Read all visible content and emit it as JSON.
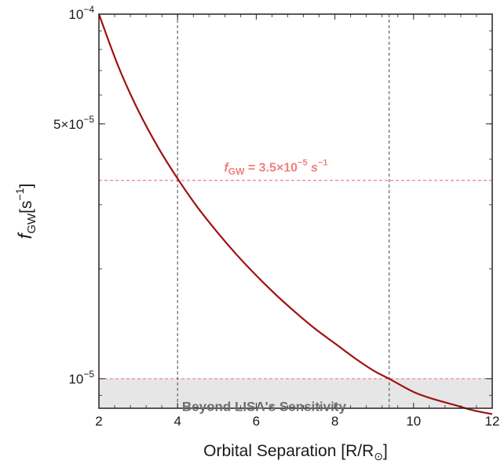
{
  "chart_data": {
    "type": "line",
    "xlabel": "Orbital Separation [R/R",
    "xlabel_sub": "⊙",
    "xlabel_close": "]",
    "ylabel_main": "f",
    "ylabel_sub": "GW",
    "ylabel_unit": "[s",
    "ylabel_exp": "−1",
    "ylabel_close": "]",
    "xlim": [
      2,
      12
    ],
    "ylim": [
      8.3e-06,
      0.0001
    ],
    "y_scale": "log",
    "x_ticks": [
      {
        "value": 2,
        "label": "2"
      },
      {
        "value": 4,
        "label": "4"
      },
      {
        "value": 6,
        "label": "6"
      },
      {
        "value": 8,
        "label": "8"
      },
      {
        "value": 10,
        "label": "10"
      },
      {
        "value": 12,
        "label": "12"
      }
    ],
    "y_major_ticks": [
      {
        "value": 0.0001,
        "base": "10",
        "exp": "−4",
        "prefix": ""
      },
      {
        "value": 5e-05,
        "base": "10",
        "exp": "−5",
        "prefix": "5×"
      },
      {
        "value": 1e-05,
        "base": "10",
        "exp": "−5",
        "prefix": ""
      }
    ],
    "series": [
      {
        "color": "#a01010",
        "x": [
          2,
          2.5,
          3,
          3.5,
          4,
          4.5,
          5,
          5.5,
          6,
          6.5,
          7,
          7.5,
          8,
          8.5,
          9,
          9.38,
          10,
          10.5,
          11,
          11.5,
          12
        ],
        "y": [
          0.0001,
          7.16e-05,
          5.44e-05,
          4.32e-05,
          3.54e-05,
          2.96e-05,
          2.53e-05,
          2.19e-05,
          1.92e-05,
          1.7e-05,
          1.52e-05,
          1.37e-05,
          1.25e-05,
          1.14e-05,
          1.05e-05,
          1e-05,
          9.2e-06,
          8.8e-06,
          8.5e-06,
          8.2e-06,
          8e-06
        ]
      }
    ],
    "reference_lines": {
      "horizontal": [
        {
          "y": 3.5e-05,
          "color": "#f08080",
          "label_main": "f",
          "label_sub": "GW",
          "label_eq": " = 3.5×10",
          "label_exp": "−5",
          "label_unit": " s",
          "label_unit_exp": "−1"
        },
        {
          "y": 1e-05,
          "color": "#f08080"
        }
      ],
      "vertical": [
        {
          "x": 4,
          "color": "#666666"
        },
        {
          "x": 9.38,
          "color": "#666666"
        }
      ]
    },
    "shaded_region": {
      "y_max": 1e-05,
      "color": "#e6e6e6",
      "label": "Beyond LISA's Sensitivity"
    },
    "grid": false
  }
}
